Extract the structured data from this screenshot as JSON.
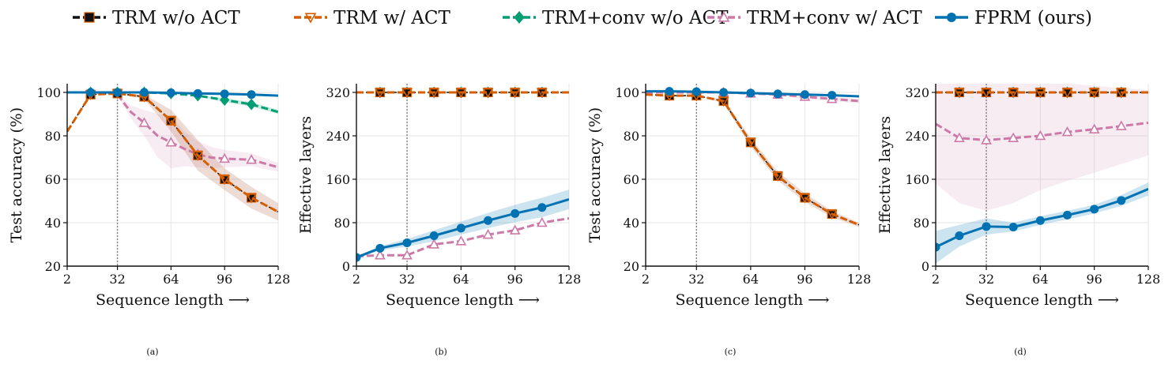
{
  "legend": [
    {
      "name": "TRM w/o ACT",
      "color": "#111111",
      "dash": "dashed",
      "marker": "square"
    },
    {
      "name": "TRM w/ ACT",
      "color": "#d55e00",
      "dash": "dashed",
      "marker": "triangle-down"
    },
    {
      "name": "TRM+conv w/o ACT",
      "color": "#009e73",
      "dash": "dashed",
      "marker": "diamond"
    },
    {
      "name": "TRM+conv w/ ACT",
      "color": "#cc79a7",
      "dash": "dashed",
      "marker": "triangle-up"
    },
    {
      "name": "FPRM (ours)",
      "color": "#0072b2",
      "dash": "solid",
      "marker": "circle"
    }
  ],
  "chart_data": [
    {
      "caption": "(a)",
      "type": "line",
      "xlabel": "Sequence length ⟶",
      "ylabel": "Test accuracy (%)",
      "xlim": [
        2,
        128
      ],
      "ylim": [
        20,
        104
      ],
      "vline": 32,
      "xticks": [
        2,
        32,
        64,
        96,
        128
      ],
      "yticks": [
        20,
        40,
        60,
        80,
        100
      ],
      "series": [
        {
          "name": "TRM w/o ACT",
          "x": [
            2,
            16,
            32,
            48,
            64,
            80,
            96,
            112,
            128
          ],
          "y": [
            82,
            99,
            99.5,
            98,
            87,
            71,
            60,
            51.5,
            45
          ],
          "band": [
            0,
            0,
            0,
            1,
            5,
            7,
            5,
            5,
            4
          ]
        },
        {
          "name": "TRM w/ ACT",
          "x": [
            2,
            16,
            32,
            48,
            64,
            80,
            96,
            112,
            128
          ],
          "y": [
            82,
            99,
            99.5,
            98,
            87,
            71,
            60,
            51.5,
            45
          ],
          "band": [
            0,
            0,
            0,
            0,
            0,
            0,
            0,
            0,
            0
          ]
        },
        {
          "name": "TRM+conv w/o ACT",
          "x": [
            2,
            16,
            32,
            48,
            64,
            80,
            96,
            112,
            128
          ],
          "y": [
            100,
            100,
            100,
            100,
            99.5,
            98.5,
            96.5,
            94.5,
            91
          ],
          "band": [
            0,
            0,
            0,
            0,
            0,
            0,
            1,
            1,
            1
          ]
        },
        {
          "name": "TRM+conv w/ ACT",
          "x": [
            32,
            40,
            48,
            56,
            64,
            72,
            80,
            88,
            96,
            112,
            128
          ],
          "y": [
            99,
            91,
            86,
            80,
            77,
            74,
            71.5,
            70,
            69.5,
            69,
            65.5
          ],
          "band": [
            0,
            3,
            6,
            10,
            12,
            8,
            6,
            5,
            4,
            3,
            2
          ]
        },
        {
          "name": "FPRM (ours)",
          "x": [
            2,
            16,
            32,
            48,
            64,
            80,
            96,
            112,
            128
          ],
          "y": [
            100,
            100,
            100,
            100,
            99.8,
            99.5,
            99.3,
            99,
            98.5
          ],
          "band": [
            0,
            0,
            0,
            0,
            0,
            0,
            0,
            0,
            0
          ]
        }
      ]
    },
    {
      "caption": "(b)",
      "type": "line",
      "xlabel": "Sequence length ⟶",
      "ylabel": "Effective layers",
      "xlim": [
        2,
        128
      ],
      "ylim": [
        0,
        336
      ],
      "vline": 32,
      "xticks": [
        2,
        32,
        64,
        96,
        128
      ],
      "yticks": [
        0,
        80,
        160,
        240,
        320
      ],
      "series": [
        {
          "name": "TRM w/o ACT",
          "x": [
            2,
            16,
            32,
            48,
            64,
            80,
            96,
            112,
            128
          ],
          "y": [
            320,
            320,
            320,
            320,
            320,
            320,
            320,
            320,
            320
          ],
          "band": [
            0,
            0,
            0,
            0,
            0,
            0,
            0,
            0,
            0
          ]
        },
        {
          "name": "TRM w/ ACT",
          "x": [
            2,
            16,
            32,
            48,
            64,
            80,
            96,
            112,
            128
          ],
          "y": [
            320,
            320,
            320,
            320,
            320,
            320,
            320,
            320,
            320
          ],
          "band": [
            0,
            0,
            0,
            0,
            0,
            0,
            0,
            0,
            0
          ]
        },
        {
          "name": "TRM+conv w/o ACT",
          "x": [
            2,
            16,
            32,
            48,
            64,
            80,
            96,
            112,
            128
          ],
          "y": [
            320,
            320,
            320,
            320,
            320,
            320,
            320,
            320,
            320
          ],
          "band": [
            0,
            0,
            0,
            0,
            0,
            0,
            0,
            0,
            0
          ]
        },
        {
          "name": "TRM+conv w/ ACT",
          "x": [
            2,
            16,
            32,
            48,
            64,
            80,
            96,
            112,
            128
          ],
          "y": [
            18,
            20,
            20,
            40,
            46,
            58,
            66,
            80,
            88
          ],
          "band": [
            0,
            0,
            0,
            0,
            0,
            0,
            0,
            0,
            0
          ]
        },
        {
          "name": "FPRM (ours)",
          "x": [
            2,
            16,
            32,
            48,
            64,
            80,
            96,
            112,
            128
          ],
          "y": [
            16,
            33,
            43,
            56,
            70,
            84,
            97,
            108,
            123
          ],
          "band": [
            2,
            4,
            7,
            10,
            12,
            14,
            16,
            18,
            18
          ]
        }
      ]
    },
    {
      "caption": "(c)",
      "type": "line",
      "xlabel": "Sequence length ⟶",
      "ylabel": "Test accuracy (%)",
      "xlim": [
        2,
        128
      ],
      "ylim": [
        20,
        104
      ],
      "vline": 32,
      "xticks": [
        2,
        32,
        64,
        96,
        128
      ],
      "yticks": [
        20,
        40,
        60,
        80,
        100
      ],
      "series": [
        {
          "name": "TRM w/o ACT",
          "x": [
            2,
            16,
            32,
            48,
            64,
            80,
            96,
            112,
            128
          ],
          "y": [
            99,
            98.5,
            98.5,
            96,
            77,
            61.5,
            51.5,
            44,
            39
          ],
          "band": [
            0,
            0,
            0,
            1,
            2,
            2,
            2,
            1.5,
            1
          ]
        },
        {
          "name": "TRM w/ ACT",
          "x": [
            2,
            16,
            32,
            48,
            64,
            80,
            96,
            112,
            128
          ],
          "y": [
            99,
            98.5,
            98.5,
            96,
            77,
            61.5,
            51.5,
            44,
            39
          ],
          "band": [
            0,
            0,
            0,
            0,
            0,
            0,
            0,
            0,
            0
          ]
        },
        {
          "name": "TRM+conv w/ ACT",
          "x": [
            2,
            16,
            32,
            48,
            64,
            80,
            96,
            112,
            128
          ],
          "y": [
            100,
            100,
            100,
            100,
            99.5,
            99,
            98,
            97,
            96
          ],
          "band": [
            0,
            0,
            0,
            0,
            0,
            0.5,
            1,
            1,
            1
          ]
        },
        {
          "name": "FPRM (ours)",
          "x": [
            2,
            16,
            32,
            48,
            64,
            80,
            96,
            112,
            128
          ],
          "y": [
            100.5,
            100.5,
            100.3,
            100,
            99.7,
            99.3,
            99,
            98.7,
            98.2
          ],
          "band": [
            0,
            0,
            0,
            0,
            0,
            0,
            0,
            0,
            0
          ]
        }
      ]
    },
    {
      "caption": "(d)",
      "type": "line",
      "xlabel": "Sequence length ⟶",
      "ylabel": "Effective layers",
      "xlim": [
        2,
        128
      ],
      "ylim": [
        0,
        336
      ],
      "vline": 32,
      "xticks": [
        2,
        32,
        64,
        96,
        128
      ],
      "yticks": [
        0,
        80,
        160,
        240,
        320
      ],
      "series": [
        {
          "name": "TRM w/o ACT",
          "x": [
            2,
            16,
            32,
            48,
            64,
            80,
            96,
            112,
            128
          ],
          "y": [
            320,
            320,
            320,
            320,
            320,
            320,
            320,
            320,
            320
          ],
          "band": [
            0,
            0,
            0,
            0,
            0,
            0,
            0,
            0,
            0
          ]
        },
        {
          "name": "TRM w/ ACT",
          "x": [
            2,
            16,
            32,
            48,
            64,
            80,
            96,
            112,
            128
          ],
          "y": [
            320,
            320,
            320,
            320,
            320,
            320,
            320,
            320,
            320
          ],
          "band": [
            0,
            0,
            0,
            0,
            0,
            0,
            0,
            0,
            0
          ]
        },
        {
          "name": "TRM+conv w/o ACT",
          "x": [
            2,
            16,
            32,
            48,
            64,
            80,
            96,
            112,
            128
          ],
          "y": [
            320,
            320,
            320,
            320,
            320,
            320,
            320,
            320,
            320
          ],
          "band": [
            0,
            0,
            0,
            0,
            0,
            0,
            0,
            0,
            0
          ]
        },
        {
          "name": "TRM+conv w/ ACT",
          "x": [
            2,
            16,
            32,
            48,
            64,
            80,
            96,
            112,
            128
          ],
          "y": [
            262,
            236,
            232,
            236,
            240,
            247,
            252,
            258,
            264
          ],
          "band": [
            110,
            120,
            130,
            120,
            100,
            90,
            80,
            70,
            60
          ]
        },
        {
          "name": "FPRM (ours)",
          "x": [
            2,
            16,
            32,
            48,
            64,
            80,
            96,
            112,
            128
          ],
          "y": [
            35,
            56,
            73,
            72,
            84,
            94,
            105,
            121,
            142
          ],
          "band": [
            30,
            20,
            15,
            8,
            8,
            8,
            8,
            10,
            12
          ]
        }
      ]
    }
  ]
}
